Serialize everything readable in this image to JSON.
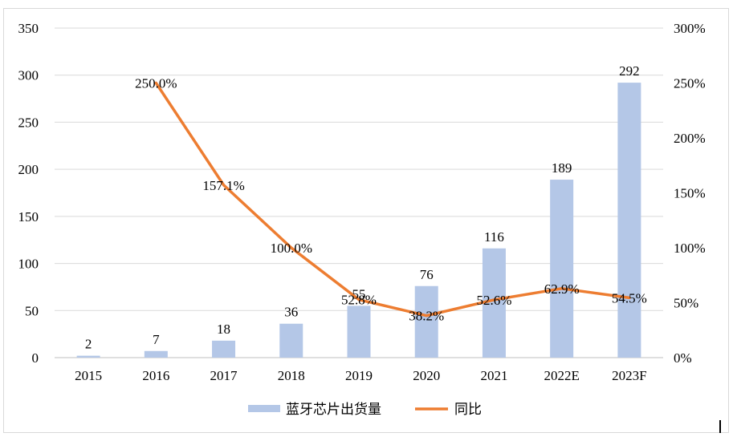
{
  "chart_data": {
    "type": "bar",
    "categories": [
      "2015",
      "2016",
      "2017",
      "2018",
      "2019",
      "2020",
      "2021",
      "2022E",
      "2023F"
    ],
    "series": [
      {
        "name": "蓝牙芯片出货量",
        "type": "bar",
        "axis": "left",
        "values": [
          2,
          7,
          18,
          36,
          55,
          76,
          116,
          189,
          292
        ],
        "labels": [
          "2",
          "7",
          "18",
          "36",
          "55",
          "76",
          "116",
          "189",
          "292"
        ],
        "color": "#b4c7e7"
      },
      {
        "name": "同比",
        "type": "line",
        "axis": "right",
        "values": [
          null,
          250.0,
          157.1,
          100.0,
          52.8,
          38.2,
          52.6,
          62.9,
          54.5
        ],
        "labels": [
          null,
          "250.0%",
          "157.1%",
          "100.0%",
          "52.8%",
          "38.2%",
          "52.6%",
          "62.9%",
          "54.5%"
        ],
        "color": "#ed7d31"
      }
    ],
    "y_left": {
      "min": 0,
      "max": 350,
      "ticks": [
        "0",
        "50",
        "100",
        "150",
        "200",
        "250",
        "300",
        "350"
      ]
    },
    "y_right": {
      "min": 0,
      "max": 300,
      "ticks": [
        "0%",
        "50%",
        "100%",
        "150%",
        "200%",
        "250%",
        "300%"
      ]
    },
    "grid": true,
    "legend": "bottom",
    "title": "",
    "xlabel": "",
    "ylabel": ""
  }
}
